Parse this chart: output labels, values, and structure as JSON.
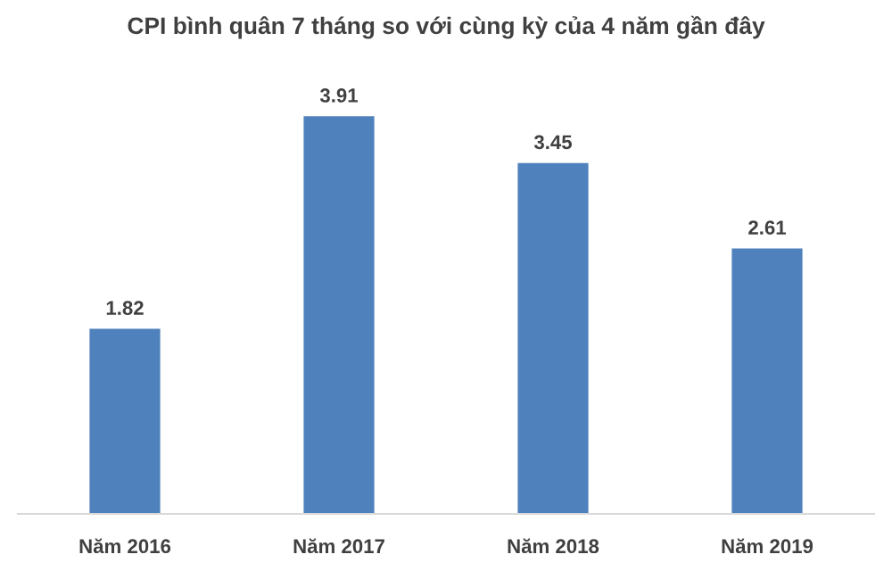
{
  "chart_data": {
    "type": "bar",
    "title": "CPI bình quân 7 tháng so với cùng kỳ của 4 năm gần đây",
    "categories": [
      "Năm 2016",
      "Năm 2017",
      "Năm 2018",
      "Năm 2019"
    ],
    "values": [
      1.82,
      3.91,
      3.45,
      2.61
    ],
    "color": "#4f81bd",
    "data_labels": true,
    "tick_labels": "x",
    "grid": false
  }
}
